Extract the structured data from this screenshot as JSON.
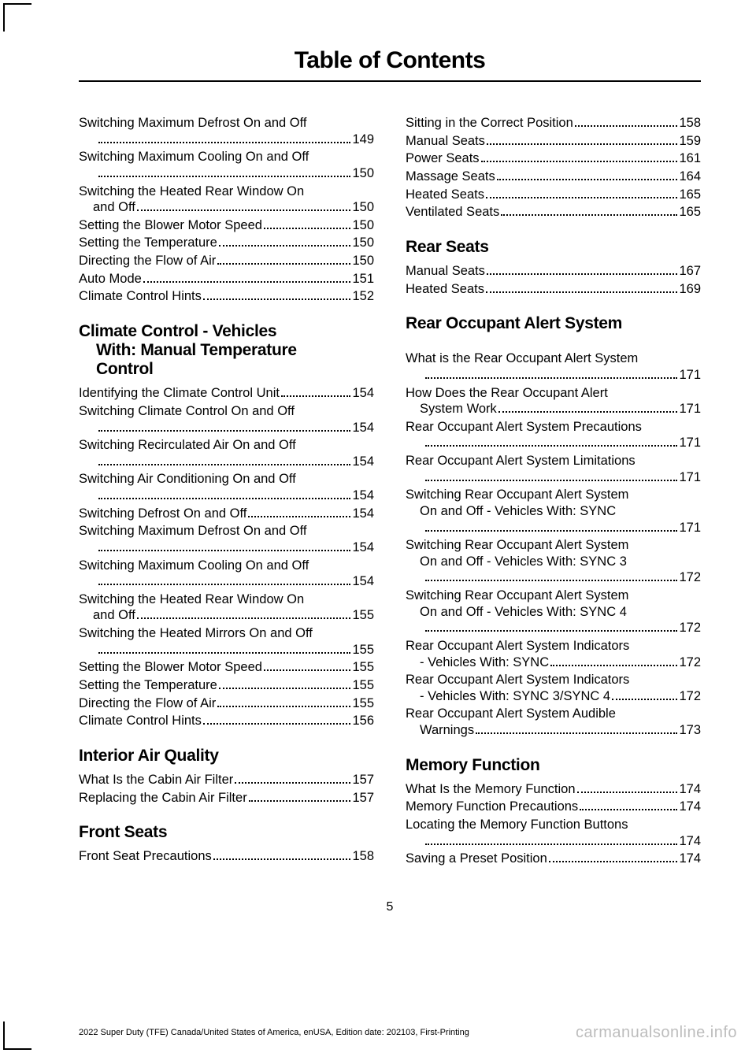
{
  "header": {
    "title": "Table of Contents"
  },
  "left": {
    "topEntries": [
      {
        "t": "Switching Maximum Defrost On and Off",
        "wrap": true,
        "p": "149"
      },
      {
        "t": "Switching Maximum Cooling On and Off",
        "wrap": true,
        "p": "150"
      },
      {
        "t": "Switching the Heated Rear Window On",
        "t2": "and Off",
        "p": "150"
      },
      {
        "t": "Setting the Blower Motor Speed",
        "p": "150"
      },
      {
        "t": "Setting the Temperature",
        "p": "150"
      },
      {
        "t": "Directing the Flow of Air",
        "p": "150"
      },
      {
        "t": "Auto Mode",
        "p": "151"
      },
      {
        "t": "Climate Control Hints",
        "p": "152"
      }
    ],
    "sections": [
      {
        "title": "Climate Control - Vehicles",
        "titleLines": [
          "With: Manual Temperature",
          "Control"
        ],
        "entries": [
          {
            "t": "Identifying the Climate Control Unit",
            "p": "154"
          },
          {
            "t": "Switching Climate Control On and Off",
            "wrap": true,
            "p": "154"
          },
          {
            "t": "Switching Recirculated Air On and Off",
            "wrap": true,
            "p": "154"
          },
          {
            "t": "Switching Air Conditioning On and Off",
            "wrap": true,
            "p": "154"
          },
          {
            "t": "Switching Defrost On and Off",
            "p": "154"
          },
          {
            "t": "Switching Maximum Defrost On and Off",
            "wrap": true,
            "p": "154"
          },
          {
            "t": "Switching Maximum Cooling On and Off",
            "wrap": true,
            "p": "154"
          },
          {
            "t": "Switching the Heated Rear Window On",
            "t2": "and Off",
            "p": "155"
          },
          {
            "t": "Switching the Heated Mirrors On and Off",
            "wrap": true,
            "p": "155"
          },
          {
            "t": "Setting the Blower Motor Speed",
            "p": "155"
          },
          {
            "t": "Setting the Temperature",
            "p": "155"
          },
          {
            "t": "Directing the Flow of Air",
            "p": "155"
          },
          {
            "t": "Climate Control Hints",
            "p": "156"
          }
        ]
      },
      {
        "title": "Interior Air Quality",
        "entries": [
          {
            "t": "What Is the Cabin Air Filter",
            "p": "157"
          },
          {
            "t": "Replacing the Cabin Air Filter",
            "p": "157"
          }
        ]
      },
      {
        "title": "Front Seats",
        "entries": [
          {
            "t": "Front Seat Precautions",
            "p": "158"
          }
        ]
      }
    ]
  },
  "right": {
    "topEntries": [
      {
        "t": "Sitting in the Correct Position",
        "p": "158"
      },
      {
        "t": "Manual Seats",
        "p": "159"
      },
      {
        "t": "Power Seats",
        "p": "161"
      },
      {
        "t": "Massage Seats",
        "p": "164"
      },
      {
        "t": "Heated Seats",
        "p": "165"
      },
      {
        "t": "Ventilated Seats",
        "p": "165"
      }
    ],
    "sections": [
      {
        "title": "Rear Seats",
        "entries": [
          {
            "t": "Manual Seats",
            "p": "167"
          },
          {
            "t": "Heated Seats",
            "p": "169"
          }
        ]
      },
      {
        "title": "Rear Occupant Alert System",
        "gap": true,
        "entries": [
          {
            "t": "What is the Rear Occupant Alert System",
            "wrap": true,
            "p": "171"
          },
          {
            "t": "How Does the Rear Occupant Alert",
            "t2": "System Work",
            "p": "171"
          },
          {
            "t": "Rear Occupant Alert System Precautions",
            "wrap": true,
            "p": "171"
          },
          {
            "t": "Rear Occupant Alert System Limitations",
            "wrap": true,
            "p": "171"
          },
          {
            "t": "Switching Rear Occupant Alert System",
            "t2": "On and Off - Vehicles With: SYNC",
            "wrap": true,
            "p": "171"
          },
          {
            "t": "Switching Rear Occupant Alert System",
            "t2": "On and Off - Vehicles With: SYNC 3",
            "wrap": true,
            "p": "172"
          },
          {
            "t": "Switching Rear Occupant Alert System",
            "t2": "On and Off - Vehicles With: SYNC 4",
            "wrap": true,
            "p": "172"
          },
          {
            "t": "Rear Occupant Alert System Indicators",
            "t2": "- Vehicles With: SYNC",
            "p": "172"
          },
          {
            "t": "Rear Occupant Alert System Indicators",
            "t2": "- Vehicles With: SYNC 3/SYNC 4",
            "p": "172"
          },
          {
            "t": "Rear Occupant Alert System Audible",
            "t2": "Warnings",
            "p": "173"
          }
        ]
      },
      {
        "title": "Memory Function",
        "entries": [
          {
            "t": "What Is the Memory Function",
            "p": "174"
          },
          {
            "t": "Memory Function Precautions",
            "p": "174"
          },
          {
            "t": "Locating the Memory Function Buttons",
            "wrap": true,
            "p": "174"
          },
          {
            "t": "Saving a Preset Position",
            "p": "174"
          }
        ]
      }
    ]
  },
  "pageNumber": "5",
  "footerMeta": "2022 Super Duty (TFE) Canada/United States of America, enUSA, Edition date: 202103, First-Printing",
  "watermark": "carmanualsonline.info"
}
